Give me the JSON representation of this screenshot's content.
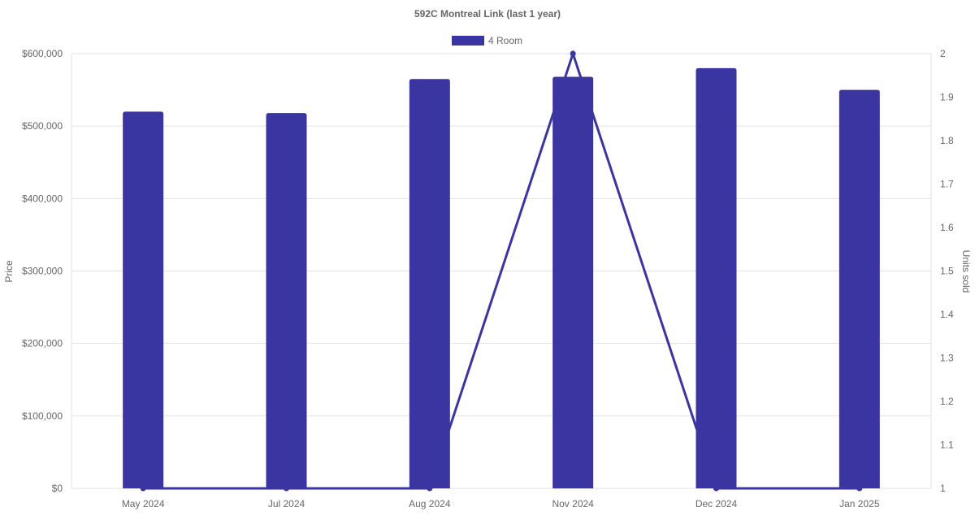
{
  "chart_data": {
    "type": "bar+line",
    "title": "592C Montreal Link (last 1 year)",
    "categories": [
      "May 2024",
      "Jul 2024",
      "Aug 2024",
      "Nov 2024",
      "Dec 2024",
      "Jan 2025"
    ],
    "series": [
      {
        "name": "4 Room",
        "type": "bar",
        "axis": "left",
        "values": [
          520000,
          518000,
          565000,
          568000,
          580000,
          550000
        ],
        "color": "#3a35a1"
      },
      {
        "type": "line",
        "axis": "right",
        "values": [
          1,
          1,
          1,
          2,
          1,
          1
        ],
        "color": "#3a35a1"
      }
    ],
    "ylabel": "Price",
    "y2label": "Units sold",
    "ylim": [
      0,
      600000
    ],
    "y2lim": [
      1,
      2
    ],
    "yticks": [
      "$0",
      "$100,000",
      "$200,000",
      "$300,000",
      "$400,000",
      "$500,000",
      "$600,000"
    ],
    "y2ticks": [
      "1",
      "1.1",
      "1.2",
      "1.3",
      "1.4",
      "1.5",
      "1.6",
      "1.7",
      "1.8",
      "1.9",
      "2"
    ],
    "grid": true,
    "legend": "top"
  }
}
